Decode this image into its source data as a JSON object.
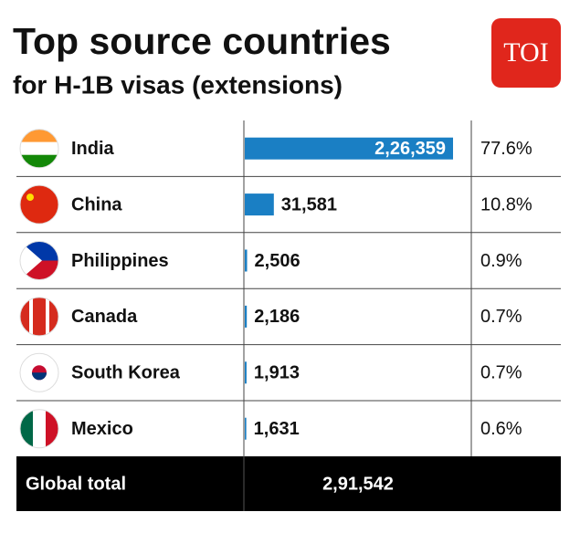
{
  "chart_data": {
    "type": "bar",
    "title": "Top source countries",
    "subtitle": "for H-1B visas (extensions)",
    "logo": "TOI",
    "categories": [
      "India",
      "China",
      "Philippines",
      "Canada",
      "South Korea",
      "Mexico"
    ],
    "values": [
      226359,
      31581,
      2506,
      2186,
      1913,
      1631
    ],
    "value_labels": [
      "2,26,359",
      "31,581",
      "2,506",
      "2,186",
      "1,913",
      "1,631"
    ],
    "color": "#1a7fc4",
    "share_values": [
      77.6,
      10.8,
      0.9,
      0.7,
      0.7,
      0.6
    ],
    "share_labels": [
      "77.6%",
      "10.8%",
      "0.9%",
      "0.7%",
      "0.7%",
      "0.6%"
    ],
    "total_label": "Global total",
    "total": 291542,
    "total_value_label": "2,91,542"
  }
}
